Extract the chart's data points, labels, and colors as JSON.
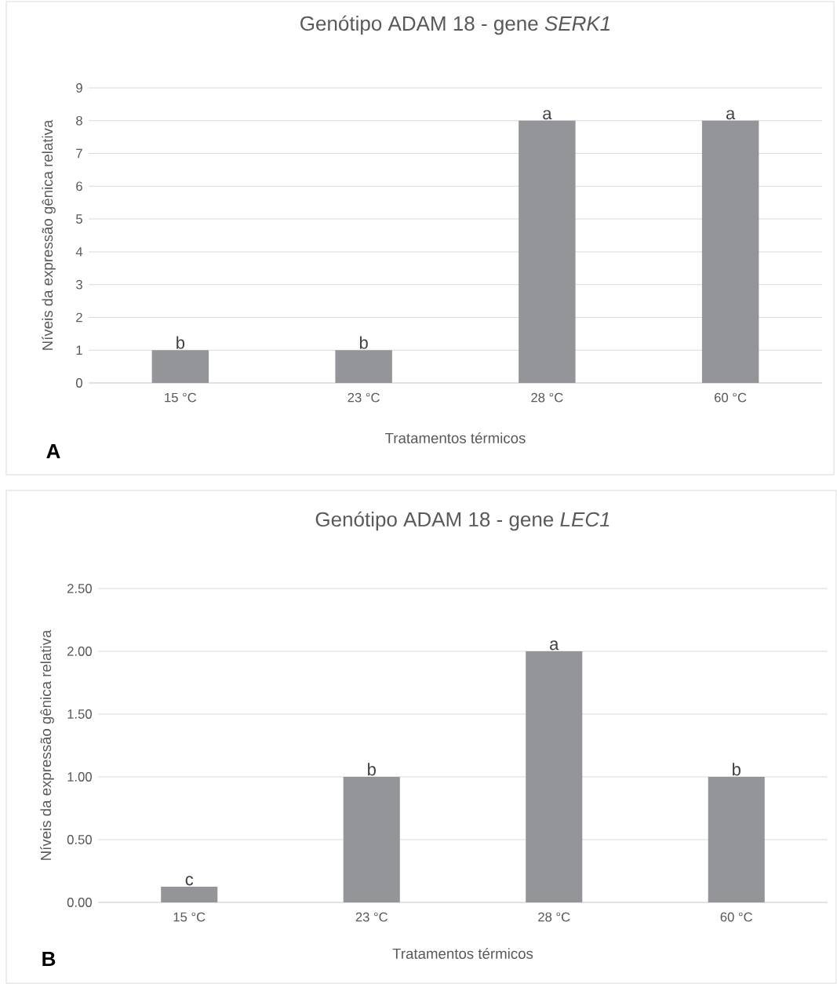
{
  "chart_data": [
    {
      "type": "bar",
      "title": "Genótipo ADAM 18 - gene *SERK1*",
      "xlabel": "Tratamentos térmicos",
      "ylabel": "Níveis da expressão gênica relativa",
      "categories": [
        "15 °C",
        "23 °C",
        "28 °C",
        "60 °C"
      ],
      "values": [
        1,
        1,
        8,
        8
      ],
      "color": "#939598",
      "ylim": [
        0,
        9
      ],
      "yticks": [
        0,
        1,
        2,
        3,
        4,
        5,
        6,
        7,
        8,
        9
      ],
      "grid": "y",
      "annotations": [
        {
          "text": "b",
          "x": "15 °C",
          "y": 1
        },
        {
          "text": "b",
          "x": "23 °C",
          "y": 1
        },
        {
          "text": "a",
          "x": "28 °C",
          "y": 8
        },
        {
          "text": "a",
          "x": "60 °C",
          "y": 8
        },
        "A"
      ]
    },
    {
      "type": "bar",
      "title": "Genótipo ADAM 18 - gene *LEC1*",
      "xlabel": "Tratamentos térmicos",
      "ylabel": "Níveis da expressão gênica relativa",
      "categories": [
        "15 °C",
        "23 °C",
        "28 °C",
        "60 °C"
      ],
      "values": [
        0.125,
        1,
        2,
        1
      ],
      "color": "#939598",
      "ylim": [
        0,
        2.5
      ],
      "yticks": [
        {
          "value": 0,
          "label": "0.00"
        },
        {
          "value": 0.5,
          "label": "0.50"
        },
        {
          "value": 1,
          "label": "1.00"
        },
        {
          "value": 1.5,
          "label": "1.50"
        },
        {
          "value": 2,
          "label": "2.00"
        },
        {
          "value": 2.5,
          "label": "2.50"
        }
      ],
      "grid": "y",
      "annotations": [
        {
          "text": "c",
          "x": "15 °C",
          "y": 0.125
        },
        {
          "text": "b",
          "x": "23 °C",
          "y": 1
        },
        {
          "text": "a",
          "x": "28 °C",
          "y": 2
        },
        {
          "text": "b",
          "x": "60 °C",
          "y": 1
        },
        "B"
      ]
    }
  ]
}
